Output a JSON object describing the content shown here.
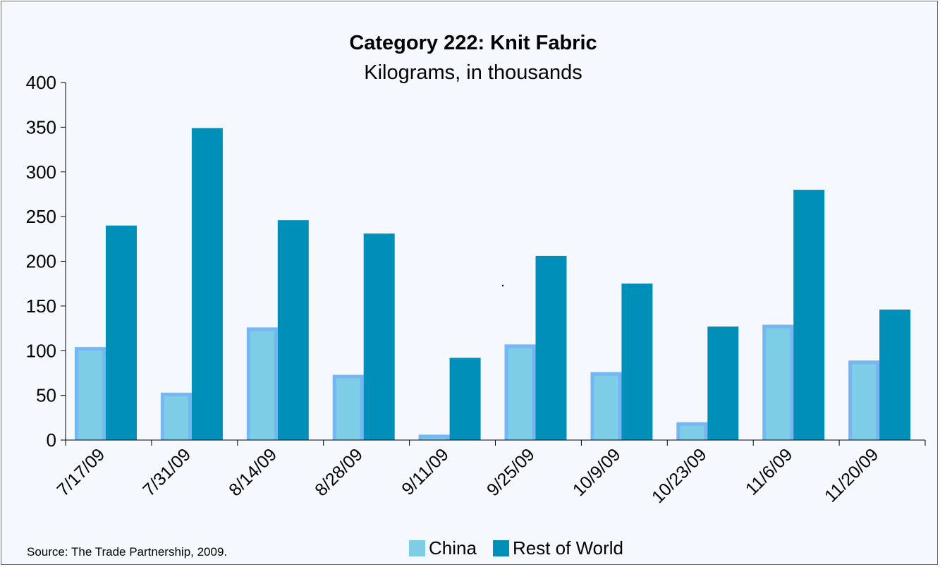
{
  "chart_data": {
    "type": "bar",
    "title": "Category 222: Knit Fabric",
    "subtitle": "Kilograms, in thousands",
    "categories": [
      "7/17/09",
      "7/31/09",
      "8/14/09",
      "8/28/09",
      "9/11/09",
      "9/25/09",
      "10/9/09",
      "10/23/09",
      "11/6/09",
      "11/20/09"
    ],
    "series": [
      {
        "name": "China",
        "color": "#7ecde6",
        "values": [
          104,
          53,
          126,
          73,
          6,
          107,
          76,
          20,
          129,
          89
        ]
      },
      {
        "name": "Rest of World",
        "color": "#008fb8",
        "values": [
          240,
          349,
          246,
          231,
          92,
          206,
          175,
          127,
          280,
          146
        ]
      }
    ],
    "yticks": [
      0,
      50,
      100,
      150,
      200,
      250,
      300,
      350,
      400
    ],
    "ylim": [
      0,
      400
    ],
    "grid": false,
    "legend_position": "bottom",
    "source": "Source: The Trade Partnership, 2009."
  }
}
